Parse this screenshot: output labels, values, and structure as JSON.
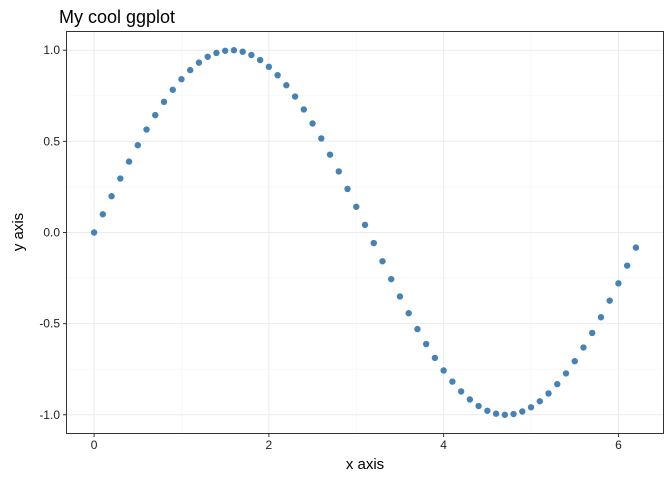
{
  "chart_data": {
    "type": "scatter",
    "title": "My cool ggplot",
    "xlabel": "x axis",
    "ylabel": "y axis",
    "xlim": [
      -0.31,
      6.51
    ],
    "ylim": [
      -1.1,
      1.1
    ],
    "xticks": [
      0,
      2,
      4,
      6
    ],
    "xtick_labels": [
      "0",
      "2",
      "4",
      "6"
    ],
    "yticks": [
      -1.0,
      -0.5,
      0.0,
      0.5,
      1.0
    ],
    "ytick_labels": [
      "-1.0",
      "-0.5",
      "0.0",
      "0.5",
      "1.0"
    ],
    "grid": true,
    "point_color": "#4682b4",
    "series": [
      {
        "x": [
          0.0,
          0.1,
          0.2,
          0.3,
          0.4,
          0.5,
          0.6,
          0.7,
          0.8,
          0.9,
          1.0,
          1.1,
          1.2,
          1.3,
          1.4,
          1.5,
          1.6,
          1.7,
          1.8,
          1.9,
          2.0,
          2.1,
          2.2,
          2.3,
          2.4,
          2.5,
          2.6,
          2.7,
          2.8,
          2.9,
          3.0,
          3.1,
          3.2,
          3.3,
          3.4,
          3.5,
          3.6,
          3.7,
          3.8,
          3.9,
          4.0,
          4.1,
          4.2,
          4.3,
          4.4,
          4.5,
          4.6,
          4.7,
          4.8,
          4.9,
          5.0,
          5.1,
          5.2,
          5.3,
          5.4,
          5.5,
          5.6,
          5.7,
          5.8,
          5.9,
          6.0,
          6.1,
          6.2
        ],
        "y": [
          0.0,
          0.1,
          0.199,
          0.296,
          0.389,
          0.479,
          0.565,
          0.644,
          0.717,
          0.783,
          0.841,
          0.891,
          0.932,
          0.964,
          0.985,
          0.997,
          1.0,
          0.992,
          0.974,
          0.946,
          0.909,
          0.863,
          0.808,
          0.746,
          0.675,
          0.598,
          0.516,
          0.427,
          0.335,
          0.239,
          0.141,
          0.042,
          -0.058,
          -0.158,
          -0.256,
          -0.351,
          -0.443,
          -0.53,
          -0.612,
          -0.688,
          -0.757,
          -0.818,
          -0.872,
          -0.916,
          -0.952,
          -0.978,
          -0.994,
          -1.0,
          -0.996,
          -0.982,
          -0.959,
          -0.926,
          -0.883,
          -0.832,
          -0.773,
          -0.706,
          -0.631,
          -0.551,
          -0.465,
          -0.374,
          -0.279,
          -0.182,
          -0.083
        ]
      }
    ]
  }
}
